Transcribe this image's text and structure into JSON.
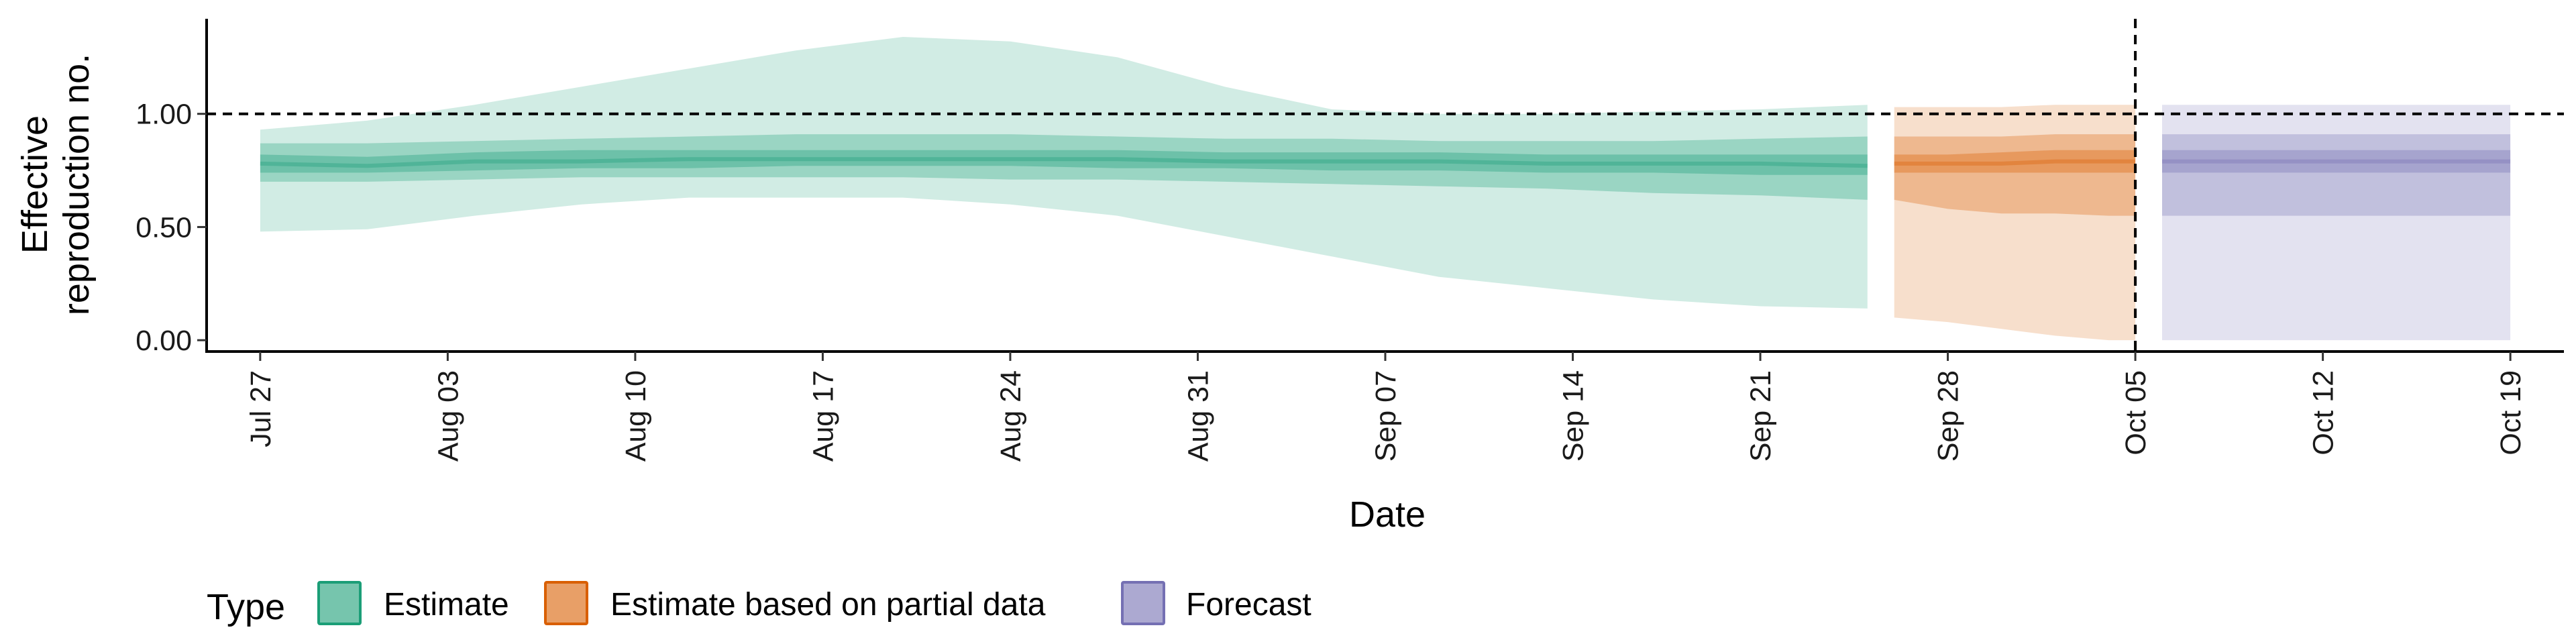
{
  "chart_data": {
    "type": "area",
    "title": "",
    "xlabel": "Date",
    "ylabel_lines": [
      "Effective",
      "reproduction no."
    ],
    "x_ticks": [
      "Jul 27",
      "Aug 03",
      "Aug 10",
      "Aug 17",
      "Aug 24",
      "Aug 31",
      "Sep 07",
      "Sep 14",
      "Sep 21",
      "Sep 28",
      "Oct 05",
      "Oct 12",
      "Oct 19"
    ],
    "y_ticks": [
      "0.00",
      "0.50",
      "1.00"
    ],
    "ylim": [
      -0.05,
      1.42
    ],
    "xlim": [
      "2020-07-25",
      "2020-10-21"
    ],
    "reference_line": {
      "y": 1.0,
      "style": "dashed"
    },
    "vertical_line": {
      "x": "2020-10-05",
      "style": "dashed"
    },
    "grid": false,
    "legend": {
      "title": "Type",
      "position": "bottom",
      "items": [
        {
          "label": "Estimate",
          "color": "#1b9e77"
        },
        {
          "label": "Estimate based on partial data",
          "color": "#d95f02"
        },
        {
          "label": "Forecast",
          "color": "#7570b3"
        }
      ]
    },
    "series": [
      {
        "name": "Estimate",
        "color": "#1b9e77",
        "dates": [
          "2020-07-27",
          "2020-07-31",
          "2020-08-04",
          "2020-08-08",
          "2020-08-12",
          "2020-08-16",
          "2020-08-20",
          "2020-08-24",
          "2020-08-28",
          "2020-09-01",
          "2020-09-05",
          "2020-09-09",
          "2020-09-13",
          "2020-09-17",
          "2020-09-21",
          "2020-09-25"
        ],
        "median": [
          0.78,
          0.77,
          0.79,
          0.79,
          0.8,
          0.8,
          0.8,
          0.8,
          0.8,
          0.79,
          0.79,
          0.79,
          0.78,
          0.78,
          0.78,
          0.77
        ],
        "lower_20": [
          0.74,
          0.74,
          0.75,
          0.76,
          0.76,
          0.77,
          0.77,
          0.77,
          0.76,
          0.76,
          0.75,
          0.75,
          0.74,
          0.74,
          0.73,
          0.73
        ],
        "upper_20": [
          0.82,
          0.81,
          0.83,
          0.84,
          0.84,
          0.84,
          0.84,
          0.84,
          0.84,
          0.83,
          0.83,
          0.83,
          0.82,
          0.82,
          0.82,
          0.82
        ],
        "lower_50": [
          0.7,
          0.7,
          0.71,
          0.72,
          0.72,
          0.72,
          0.72,
          0.71,
          0.71,
          0.7,
          0.69,
          0.68,
          0.67,
          0.65,
          0.64,
          0.62
        ],
        "upper_50": [
          0.87,
          0.87,
          0.88,
          0.89,
          0.9,
          0.91,
          0.91,
          0.91,
          0.9,
          0.89,
          0.89,
          0.88,
          0.88,
          0.88,
          0.89,
          0.9
        ],
        "lower_90": [
          0.48,
          0.49,
          0.55,
          0.6,
          0.63,
          0.63,
          0.63,
          0.6,
          0.55,
          0.46,
          0.37,
          0.28,
          0.23,
          0.18,
          0.15,
          0.14
        ],
        "upper_90": [
          0.93,
          0.97,
          1.04,
          1.12,
          1.2,
          1.28,
          1.34,
          1.32,
          1.25,
          1.12,
          1.02,
          1.0,
          1.0,
          1.01,
          1.02,
          1.04
        ]
      },
      {
        "name": "Estimate based on partial data",
        "color": "#d95f02",
        "dates": [
          "2020-09-26",
          "2020-09-28",
          "2020-09-30",
          "2020-10-02",
          "2020-10-04",
          "2020-10-05"
        ],
        "median": [
          0.78,
          0.78,
          0.78,
          0.79,
          0.79,
          0.79
        ],
        "lower_20": [
          0.74,
          0.74,
          0.74,
          0.74,
          0.74,
          0.74
        ],
        "upper_20": [
          0.82,
          0.82,
          0.83,
          0.84,
          0.84,
          0.84
        ],
        "lower_50": [
          0.62,
          0.58,
          0.56,
          0.56,
          0.55,
          0.55
        ],
        "upper_50": [
          0.9,
          0.9,
          0.9,
          0.91,
          0.91,
          0.91
        ],
        "lower_90": [
          0.1,
          0.08,
          0.05,
          0.02,
          0.0,
          0.0
        ],
        "upper_90": [
          1.03,
          1.03,
          1.03,
          1.04,
          1.04,
          1.04
        ]
      },
      {
        "name": "Forecast",
        "color": "#7570b3",
        "dates": [
          "2020-10-06",
          "2020-10-19"
        ],
        "median": [
          0.79,
          0.79
        ],
        "lower_20": [
          0.74,
          0.74
        ],
        "upper_20": [
          0.84,
          0.84
        ],
        "lower_50": [
          0.55,
          0.55
        ],
        "upper_50": [
          0.91,
          0.91
        ],
        "lower_90": [
          0.0,
          0.0
        ],
        "upper_90": [
          1.04,
          1.04
        ]
      }
    ]
  }
}
